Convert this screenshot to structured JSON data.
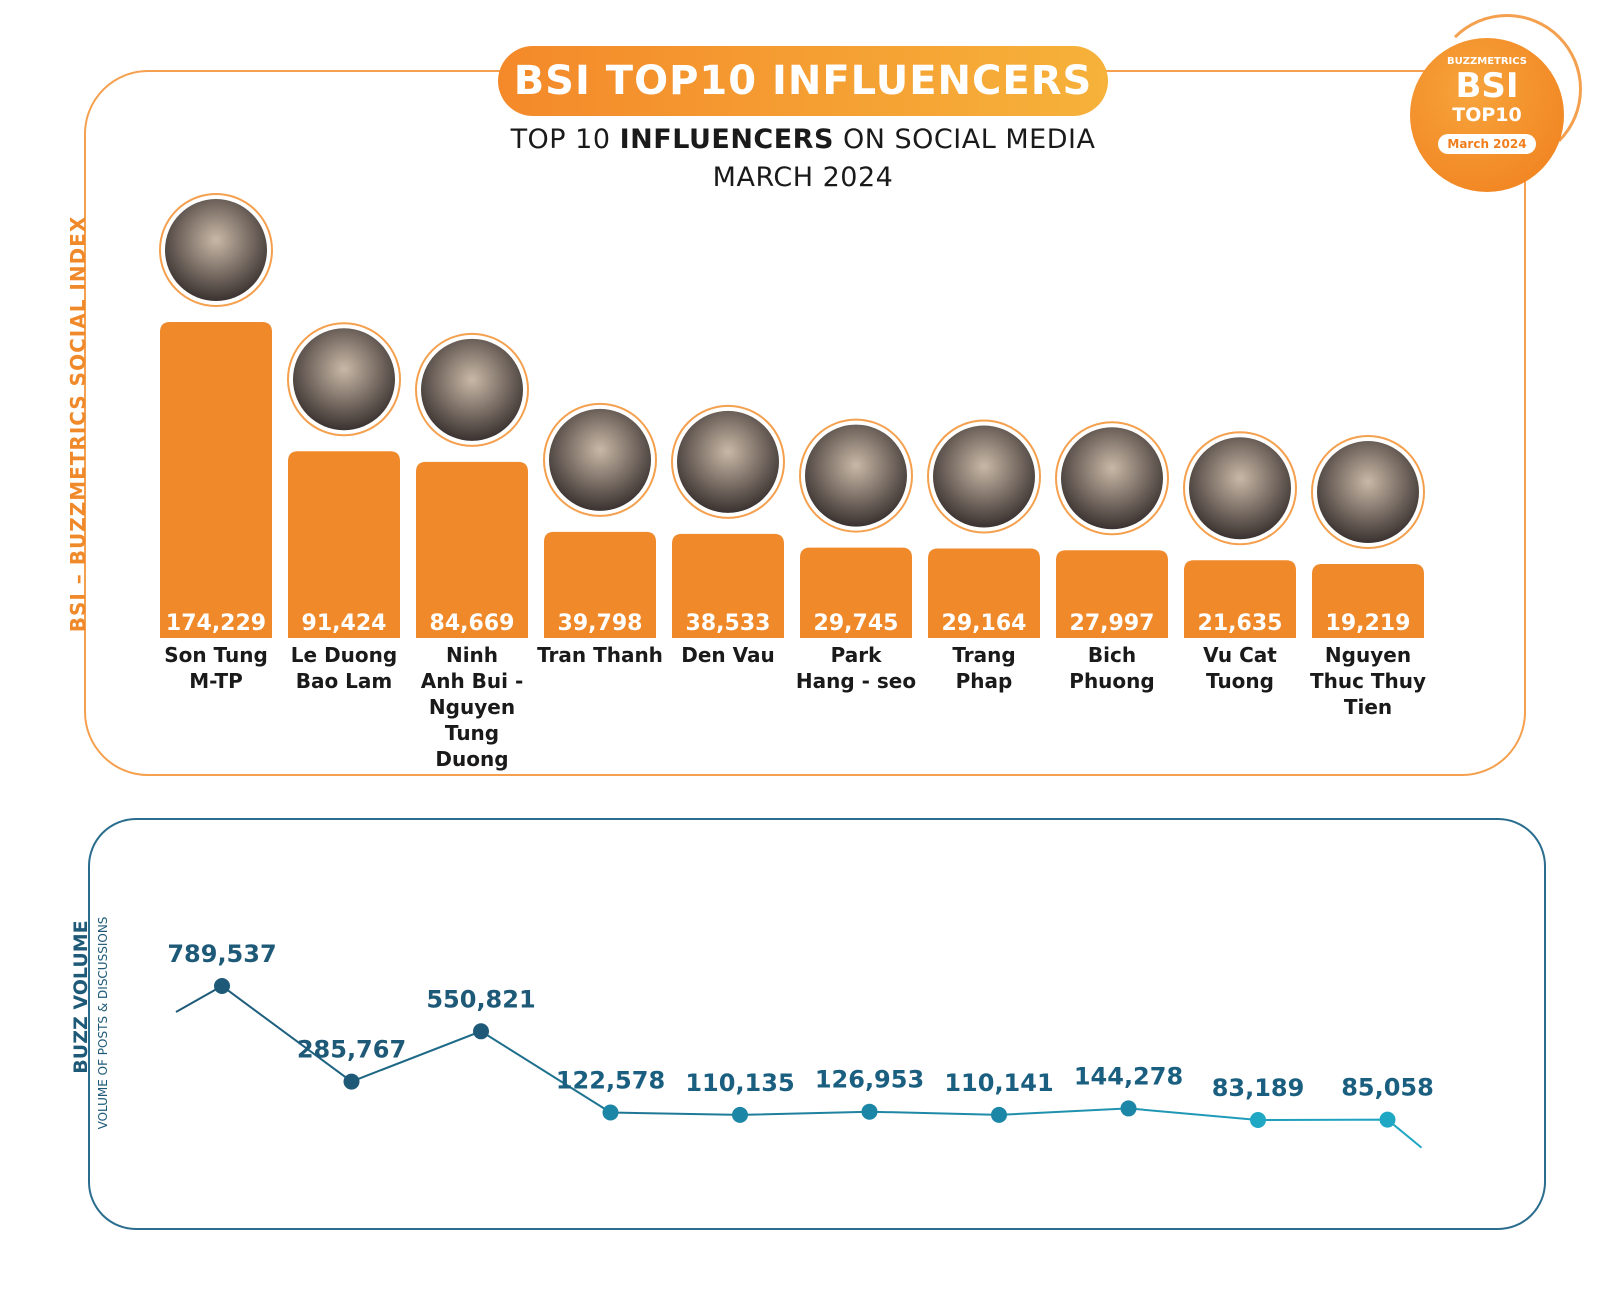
{
  "header": {
    "title": "BSI TOP10 INFLUENCERS",
    "subtitle_pre": "TOP 10 ",
    "subtitle_bold": "INFLUENCERS",
    "subtitle_post": " ON SOCIAL MEDIA",
    "month": "MARCH 2024"
  },
  "badge": {
    "brand": "BUZZMETRICS",
    "bsi": "BSI",
    "top10": "TOP10",
    "month": "March 2024"
  },
  "colors": {
    "orange": "#f0892a",
    "orange_light": "#f6b23a",
    "teal_dark": "#1e5a78",
    "teal_light": "#1fa7c4"
  },
  "chart_data": [
    {
      "type": "bar",
      "ylabel": "BSI – BUZZMETRICS SOCIAL INDEX",
      "categories": [
        "Son Tung M-TP",
        "Le Duong Bao Lam",
        "Ninh Anh Bui - Nguyen Tung Duong",
        "Tran Thanh",
        "Den Vau",
        "Park Hang - seo",
        "Trang Phap",
        "Bich Phuong",
        "Vu Cat Tuong",
        "Nguyen Thuc Thuy Tien"
      ],
      "label_lines": [
        [
          "Son Tung",
          "M-TP"
        ],
        [
          "Le Duong",
          "Bao Lam"
        ],
        [
          "Ninh",
          "Anh Bui -",
          "Nguyen",
          "Tung",
          "Duong"
        ],
        [
          "Tran Thanh"
        ],
        [
          "Den Vau"
        ],
        [
          "Park",
          "Hang - seo"
        ],
        [
          "Trang",
          "Phap"
        ],
        [
          "Bich",
          "Phuong"
        ],
        [
          "Vu Cat",
          "Tuong"
        ],
        [
          "Nguyen",
          "Thuc Thuy",
          "Tien"
        ]
      ],
      "values": [
        174229,
        91424,
        84669,
        39798,
        38533,
        29745,
        29164,
        27997,
        21635,
        19219
      ],
      "value_labels": [
        "174,229",
        "91,424",
        "84,669",
        "39,798",
        "38,533",
        "29,745",
        "29,164",
        "27,997",
        "21,635",
        "19,219"
      ]
    },
    {
      "type": "line",
      "ylabel": "BUZZ VOLUME",
      "ylabel_sub": "VOLUME OF POSTS & DISCUSSIONS",
      "values": [
        789537,
        285767,
        550821,
        122578,
        110135,
        126953,
        110141,
        144278,
        83189,
        85058
      ],
      "value_labels": [
        "789,537",
        "285,767",
        "550,821",
        "122,578",
        "110,135",
        "126,953",
        "110,141",
        "144,278",
        "83,189",
        "85,058"
      ]
    }
  ]
}
